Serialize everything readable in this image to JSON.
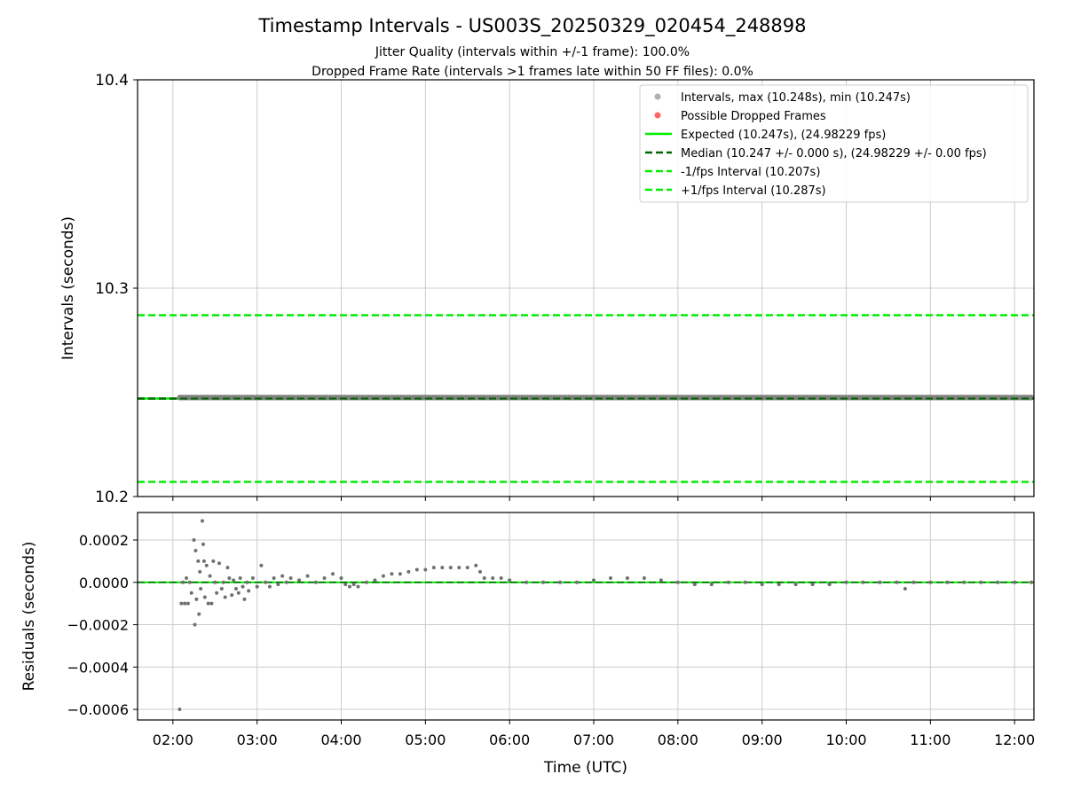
{
  "title": "Timestamp Intervals - US003S_20250329_020454_248898",
  "subtitle_1": "Jitter Quality (intervals within +/-1 frame): 100.0%",
  "subtitle_2": "Dropped Frame Rate (intervals >1 frames late within 50 FF files): 0.0%",
  "colors": {
    "intervals": "#808080",
    "intervals_legend": "#b0b0b0",
    "dropped": "#ff6666",
    "expected": "#00ee00",
    "median": "#006400",
    "fps_interval": "#00ee00",
    "grid": "#cccccc",
    "residuals": "#707070"
  },
  "chart_data": [
    {
      "type": "scatter",
      "ylabel": "Intervals (seconds)",
      "ylim": [
        10.2,
        10.4
      ],
      "yticks": [
        "10.2",
        "10.3",
        "10.4"
      ],
      "xlim_hours": [
        1.58,
        12.23
      ],
      "grid": true,
      "legend_position": "top-right",
      "legend": [
        "Intervals, max (10.248s), min (10.247s)",
        "Possible Dropped Frames",
        "Expected (10.247s), (24.98229 fps)",
        "Median (10.247 +/- 0.000 s), (24.98229 +/- 0.00 fps)",
        "-1/fps Interval (10.207s)",
        "+1/fps Interval (10.287s)"
      ],
      "series": [
        {
          "name": "Intervals",
          "x_range": [
            "02:05",
            "12:13"
          ],
          "value_range": [
            10.247,
            10.248
          ]
        },
        {
          "name": "Possible Dropped Frames",
          "values": []
        }
      ],
      "reference_lines": [
        {
          "name": "Expected",
          "y": 10.247
        },
        {
          "name": "Median",
          "y": 10.247
        },
        {
          "name": "-1/fps Interval",
          "y": 10.207
        },
        {
          "name": "+1/fps Interval",
          "y": 10.287
        }
      ]
    },
    {
      "type": "scatter",
      "xlabel": "Time (UTC)",
      "ylabel": "Residuals (seconds)",
      "ylim": [
        -0.00065,
        0.00033
      ],
      "yticks": [
        "0.0002",
        "0.0000",
        "−0.0002",
        "−0.0004",
        "−0.0006"
      ],
      "xticks": [
        "02:00",
        "03:00",
        "04:00",
        "05:00",
        "06:00",
        "07:00",
        "08:00",
        "09:00",
        "10:00",
        "11:00",
        "12:00"
      ],
      "grid": true,
      "reference_lines": [
        {
          "name": "zero",
          "y": 0
        }
      ],
      "series": [
        {
          "name": "Residuals",
          "points": [
            [
              2.08,
              -0.0006
            ],
            [
              2.1,
              -0.0001
            ],
            [
              2.12,
              0.0
            ],
            [
              2.14,
              -0.0001
            ],
            [
              2.16,
              2e-05
            ],
            [
              2.18,
              -0.0001
            ],
            [
              2.2,
              0.0
            ],
            [
              2.22,
              -5e-05
            ],
            [
              2.25,
              0.0002
            ],
            [
              2.26,
              -0.0002
            ],
            [
              2.27,
              0.00015
            ],
            [
              2.28,
              -8e-05
            ],
            [
              2.3,
              0.0001
            ],
            [
              2.31,
              -0.00015
            ],
            [
              2.32,
              5e-05
            ],
            [
              2.33,
              -3e-05
            ],
            [
              2.35,
              0.00029
            ],
            [
              2.36,
              0.00018
            ],
            [
              2.37,
              0.0001
            ],
            [
              2.38,
              -7e-05
            ],
            [
              2.4,
              8e-05
            ],
            [
              2.42,
              -0.0001
            ],
            [
              2.44,
              3e-05
            ],
            [
              2.46,
              -0.0001
            ],
            [
              2.48,
              0.0001
            ],
            [
              2.5,
              0.0
            ],
            [
              2.52,
              -5e-05
            ],
            [
              2.55,
              9e-05
            ],
            [
              2.58,
              -3e-05
            ],
            [
              2.6,
              0.0
            ],
            [
              2.62,
              -7e-05
            ],
            [
              2.65,
              7e-05
            ],
            [
              2.67,
              2e-05
            ],
            [
              2.7,
              -6e-05
            ],
            [
              2.72,
              1e-05
            ],
            [
              2.75,
              -3e-05
            ],
            [
              2.78,
              -5e-05
            ],
            [
              2.8,
              2e-05
            ],
            [
              2.83,
              -2e-05
            ],
            [
              2.85,
              -8e-05
            ],
            [
              2.88,
              0.0
            ],
            [
              2.9,
              -4e-05
            ],
            [
              2.95,
              2e-05
            ],
            [
              3.0,
              -2e-05
            ],
            [
              3.05,
              8e-05
            ],
            [
              3.1,
              0.0
            ],
            [
              3.15,
              -2e-05
            ],
            [
              3.2,
              2e-05
            ],
            [
              3.25,
              -1e-05
            ],
            [
              3.3,
              3e-05
            ],
            [
              3.35,
              0.0
            ],
            [
              3.4,
              2e-05
            ],
            [
              3.5,
              1e-05
            ],
            [
              3.6,
              3e-05
            ],
            [
              3.7,
              0.0
            ],
            [
              3.8,
              2e-05
            ],
            [
              3.9,
              4e-05
            ],
            [
              4.0,
              2e-05
            ],
            [
              4.05,
              -1e-05
            ],
            [
              4.1,
              -2e-05
            ],
            [
              4.15,
              -1e-05
            ],
            [
              4.2,
              -2e-05
            ],
            [
              4.3,
              0.0
            ],
            [
              4.4,
              1e-05
            ],
            [
              4.5,
              3e-05
            ],
            [
              4.6,
              4e-05
            ],
            [
              4.7,
              4e-05
            ],
            [
              4.8,
              5e-05
            ],
            [
              4.9,
              6e-05
            ],
            [
              5.0,
              6e-05
            ],
            [
              5.1,
              7e-05
            ],
            [
              5.2,
              7e-05
            ],
            [
              5.3,
              7e-05
            ],
            [
              5.4,
              7e-05
            ],
            [
              5.5,
              7e-05
            ],
            [
              5.6,
              8e-05
            ],
            [
              5.65,
              5e-05
            ],
            [
              5.7,
              2e-05
            ],
            [
              5.8,
              2e-05
            ],
            [
              5.9,
              2e-05
            ],
            [
              6.0,
              1e-05
            ],
            [
              6.2,
              0.0
            ],
            [
              6.4,
              0.0
            ],
            [
              6.6,
              0.0
            ],
            [
              6.8,
              0.0
            ],
            [
              7.0,
              1e-05
            ],
            [
              7.2,
              2e-05
            ],
            [
              7.4,
              2e-05
            ],
            [
              7.6,
              2e-05
            ],
            [
              7.8,
              1e-05
            ],
            [
              8.0,
              0.0
            ],
            [
              8.2,
              -1e-05
            ],
            [
              8.4,
              -1e-05
            ],
            [
              8.6,
              0.0
            ],
            [
              8.8,
              0.0
            ],
            [
              9.0,
              -1e-05
            ],
            [
              9.2,
              -1e-05
            ],
            [
              9.4,
              -1e-05
            ],
            [
              9.6,
              -1e-05
            ],
            [
              9.8,
              -1e-05
            ],
            [
              10.0,
              0.0
            ],
            [
              10.2,
              0.0
            ],
            [
              10.4,
              0.0
            ],
            [
              10.6,
              0.0
            ],
            [
              10.7,
              -3e-05
            ],
            [
              10.8,
              0.0
            ],
            [
              11.0,
              0.0
            ],
            [
              11.2,
              0.0
            ],
            [
              11.4,
              0.0
            ],
            [
              11.6,
              0.0
            ],
            [
              11.8,
              0.0
            ],
            [
              12.0,
              0.0
            ],
            [
              12.2,
              0.0
            ]
          ]
        }
      ]
    }
  ]
}
